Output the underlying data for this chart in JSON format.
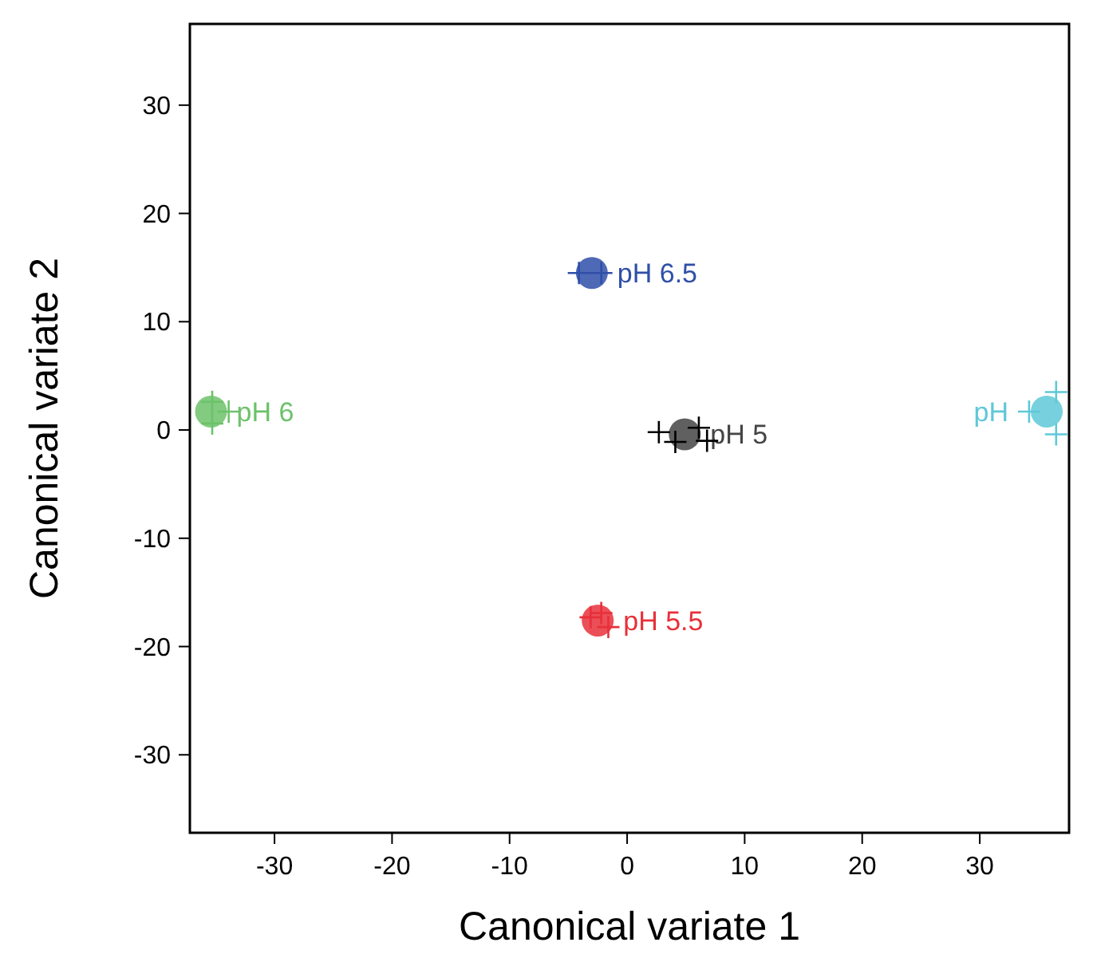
{
  "chart_data": {
    "type": "scatter",
    "xlabel": "Canonical variate 1",
    "ylabel": "Canonical variate 2",
    "xlim": [
      -37.2,
      37.6
    ],
    "ylim": [
      -37.2,
      37.5
    ],
    "xticks": [
      -30,
      -20,
      -10,
      0,
      10,
      20,
      30
    ],
    "yticks": [
      -30,
      -20,
      -10,
      0,
      10,
      20,
      30
    ],
    "grid": false,
    "series": [
      {
        "name": "pH 6.5",
        "marker": "circle",
        "color": "#2f4fa8",
        "x": [
          -3.0
        ],
        "values": [
          14.5
        ]
      },
      {
        "marker": "cross",
        "color": "#2f4fa8",
        "x": [
          -4.1,
          -2.2
        ],
        "values": [
          14.5,
          14.5
        ]
      },
      {
        "name": "pH 6",
        "marker": "circle",
        "color": "#6cc26a",
        "x": [
          -35.4
        ],
        "values": [
          1.7
        ]
      },
      {
        "marker": "cross",
        "color": "#6cc26a",
        "x": [
          -35.3,
          -35.3,
          -33.9
        ],
        "values": [
          2.6,
          0.6,
          1.7
        ]
      },
      {
        "name": "pH 5",
        "marker": "circle",
        "color": "#444444",
        "x": [
          4.9
        ],
        "values": [
          -0.4
        ]
      },
      {
        "marker": "cross",
        "color": "#000000",
        "x": [
          2.7,
          4.1,
          6.1,
          6.8
        ],
        "values": [
          -0.2,
          -1.1,
          0.2,
          -1.0
        ]
      },
      {
        "name": "pH 5.5",
        "marker": "circle",
        "color": "#e8303a",
        "x": [
          -2.5
        ],
        "values": [
          -17.6
        ]
      },
      {
        "marker": "cross",
        "color": "#e8303a",
        "x": [
          -3.1,
          -2.2,
          -1.6
        ],
        "values": [
          -17.3,
          -16.9,
          -18.2
        ]
      },
      {
        "name": "pH",
        "marker": "circle",
        "color": "#5fc8d8",
        "x": [
          35.7
        ],
        "values": [
          1.7
        ]
      },
      {
        "marker": "cross",
        "color": "#5fc8d8",
        "x": [
          36.5,
          36.5,
          34.2
        ],
        "values": [
          3.5,
          -0.4,
          1.7
        ]
      }
    ]
  }
}
